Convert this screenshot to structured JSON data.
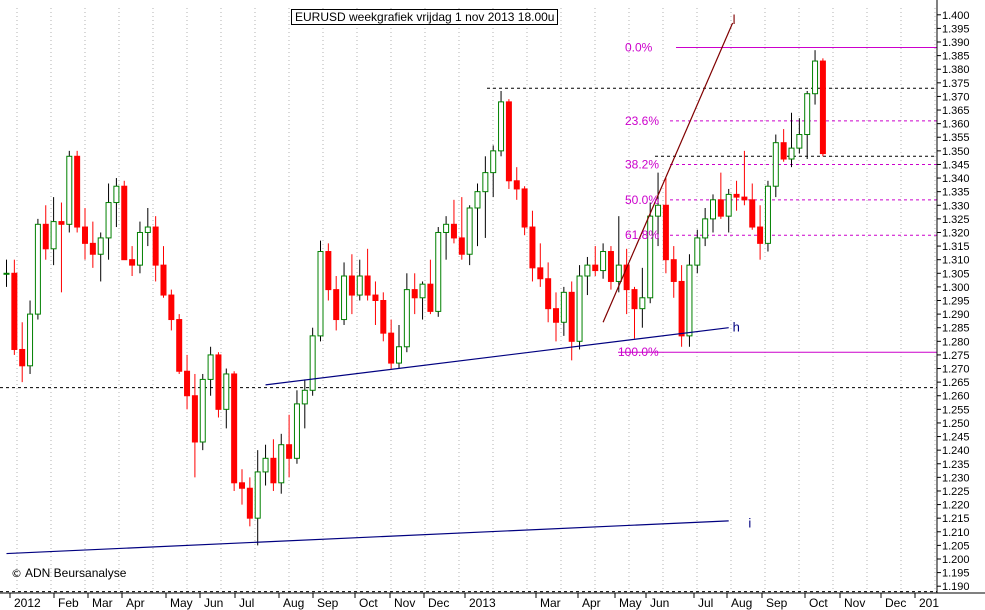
{
  "title": "EURUSD weekgrafiek vrijdag 1 nov 2013 18.00u",
  "copyright": "ADN Beursanalyse",
  "copyright_icon": "copyright-icon",
  "colors": {
    "up": "#008000",
    "down": "#ff0000",
    "fib": "#cc00cc",
    "trend": "#000080",
    "channel": "#800000",
    "grid": "#808080"
  },
  "chart_data": {
    "type": "candlestick",
    "timeframe": "weekly",
    "ylim": [
      1.1875,
      1.4025
    ],
    "y_ticks": [
      1.19,
      1.195,
      1.2,
      1.205,
      1.21,
      1.215,
      1.22,
      1.225,
      1.23,
      1.235,
      1.24,
      1.245,
      1.25,
      1.255,
      1.26,
      1.265,
      1.27,
      1.275,
      1.28,
      1.285,
      1.29,
      1.295,
      1.3,
      1.305,
      1.31,
      1.315,
      1.32,
      1.325,
      1.33,
      1.335,
      1.34,
      1.345,
      1.35,
      1.355,
      1.36,
      1.365,
      1.37,
      1.375,
      1.38,
      1.385,
      1.39,
      1.395,
      1.4
    ],
    "x_labels": [
      "2012",
      "Feb",
      "Mar",
      "Apr",
      "May",
      "Jun",
      "Jul",
      "Aug",
      "Sep",
      "Oct",
      "Nov",
      "Dec",
      "2013",
      "Mar",
      "Apr",
      "May",
      "Jun",
      "Jul",
      "Aug",
      "Sep",
      "Oct",
      "Nov",
      "Dec",
      "201"
    ],
    "fibonacci": [
      {
        "label": "0.0%",
        "value": 1.388
      },
      {
        "label": "23.6%",
        "value": 1.361
      },
      {
        "label": "38.2%",
        "value": 1.345
      },
      {
        "label": "50.0%",
        "value": 1.332
      },
      {
        "label": "61.8%",
        "value": 1.319
      },
      {
        "label": "100.0%",
        "value": 1.276
      }
    ],
    "horizontal_levels": [
      1.373,
      1.348,
      1.263,
      1.188
    ],
    "annotations": [
      {
        "label": "l",
        "week": 92.5,
        "value": 1.398
      },
      {
        "label": "h",
        "week": 92.5,
        "value": 1.285
      },
      {
        "label": "i",
        "week": 94.5,
        "value": 1.213
      }
    ],
    "trendlines": [
      {
        "name": "h",
        "from": [
          33,
          1.264
        ],
        "to": [
          92,
          1.285
        ]
      },
      {
        "name": "i",
        "from": [
          0,
          1.202
        ],
        "to": [
          92,
          1.214
        ]
      },
      {
        "name": "l",
        "from": [
          76,
          1.287
        ],
        "to": [
          92.5,
          1.397
        ]
      }
    ],
    "candles": [
      {
        "o": 1.305,
        "h": 1.31,
        "l": 1.3,
        "c": 1.305
      },
      {
        "o": 1.305,
        "h": 1.31,
        "l": 1.275,
        "c": 1.277
      },
      {
        "o": 1.277,
        "h": 1.287,
        "l": 1.265,
        "c": 1.271
      },
      {
        "o": 1.271,
        "h": 1.295,
        "l": 1.268,
        "c": 1.29
      },
      {
        "o": 1.29,
        "h": 1.325,
        "l": 1.288,
        "c": 1.323
      },
      {
        "o": 1.323,
        "h": 1.33,
        "l": 1.31,
        "c": 1.314
      },
      {
        "o": 1.314,
        "h": 1.333,
        "l": 1.308,
        "c": 1.324
      },
      {
        "o": 1.324,
        "h": 1.331,
        "l": 1.298,
        "c": 1.323
      },
      {
        "o": 1.323,
        "h": 1.35,
        "l": 1.32,
        "c": 1.348
      },
      {
        "o": 1.348,
        "h": 1.35,
        "l": 1.32,
        "c": 1.322
      },
      {
        "o": 1.322,
        "h": 1.329,
        "l": 1.31,
        "c": 1.316
      },
      {
        "o": 1.316,
        "h": 1.324,
        "l": 1.307,
        "c": 1.312
      },
      {
        "o": 1.312,
        "h": 1.32,
        "l": 1.302,
        "c": 1.318
      },
      {
        "o": 1.318,
        "h": 1.338,
        "l": 1.31,
        "c": 1.331
      },
      {
        "o": 1.331,
        "h": 1.34,
        "l": 1.322,
        "c": 1.337
      },
      {
        "o": 1.337,
        "h": 1.339,
        "l": 1.31,
        "c": 1.31
      },
      {
        "o": 1.31,
        "h": 1.315,
        "l": 1.304,
        "c": 1.308
      },
      {
        "o": 1.308,
        "h": 1.324,
        "l": 1.305,
        "c": 1.32
      },
      {
        "o": 1.32,
        "h": 1.329,
        "l": 1.315,
        "c": 1.322
      },
      {
        "o": 1.322,
        "h": 1.326,
        "l": 1.302,
        "c": 1.308
      },
      {
        "o": 1.308,
        "h": 1.315,
        "l": 1.296,
        "c": 1.297
      },
      {
        "o": 1.297,
        "h": 1.299,
        "l": 1.284,
        "c": 1.288
      },
      {
        "o": 1.288,
        "h": 1.29,
        "l": 1.268,
        "c": 1.269
      },
      {
        "o": 1.269,
        "h": 1.275,
        "l": 1.255,
        "c": 1.26
      },
      {
        "o": 1.26,
        "h": 1.268,
        "l": 1.23,
        "c": 1.243
      },
      {
        "o": 1.243,
        "h": 1.268,
        "l": 1.24,
        "c": 1.266
      },
      {
        "o": 1.266,
        "h": 1.278,
        "l": 1.26,
        "c": 1.275
      },
      {
        "o": 1.275,
        "h": 1.276,
        "l": 1.252,
        "c": 1.255
      },
      {
        "o": 1.255,
        "h": 1.27,
        "l": 1.248,
        "c": 1.268
      },
      {
        "o": 1.268,
        "h": 1.269,
        "l": 1.225,
        "c": 1.228
      },
      {
        "o": 1.228,
        "h": 1.233,
        "l": 1.22,
        "c": 1.226
      },
      {
        "o": 1.226,
        "h": 1.23,
        "l": 1.212,
        "c": 1.215
      },
      {
        "o": 1.215,
        "h": 1.24,
        "l": 1.205,
        "c": 1.232
      },
      {
        "o": 1.232,
        "h": 1.242,
        "l": 1.227,
        "c": 1.237
      },
      {
        "o": 1.237,
        "h": 1.244,
        "l": 1.225,
        "c": 1.228
      },
      {
        "o": 1.228,
        "h": 1.246,
        "l": 1.224,
        "c": 1.242
      },
      {
        "o": 1.242,
        "h": 1.253,
        "l": 1.23,
        "c": 1.237
      },
      {
        "o": 1.237,
        "h": 1.262,
        "l": 1.235,
        "c": 1.257
      },
      {
        "o": 1.257,
        "h": 1.266,
        "l": 1.248,
        "c": 1.262
      },
      {
        "o": 1.262,
        "h": 1.285,
        "l": 1.26,
        "c": 1.282
      },
      {
        "o": 1.282,
        "h": 1.317,
        "l": 1.28,
        "c": 1.313
      },
      {
        "o": 1.313,
        "h": 1.316,
        "l": 1.295,
        "c": 1.299
      },
      {
        "o": 1.299,
        "h": 1.304,
        "l": 1.284,
        "c": 1.288
      },
      {
        "o": 1.288,
        "h": 1.309,
        "l": 1.286,
        "c": 1.304
      },
      {
        "o": 1.304,
        "h": 1.312,
        "l": 1.29,
        "c": 1.297
      },
      {
        "o": 1.297,
        "h": 1.31,
        "l": 1.295,
        "c": 1.304
      },
      {
        "o": 1.304,
        "h": 1.314,
        "l": 1.295,
        "c": 1.297
      },
      {
        "o": 1.297,
        "h": 1.302,
        "l": 1.286,
        "c": 1.295
      },
      {
        "o": 1.295,
        "h": 1.298,
        "l": 1.28,
        "c": 1.283
      },
      {
        "o": 1.283,
        "h": 1.288,
        "l": 1.27,
        "c": 1.272
      },
      {
        "o": 1.272,
        "h": 1.286,
        "l": 1.27,
        "c": 1.278
      },
      {
        "o": 1.278,
        "h": 1.305,
        "l": 1.276,
        "c": 1.299
      },
      {
        "o": 1.299,
        "h": 1.305,
        "l": 1.29,
        "c": 1.296
      },
      {
        "o": 1.296,
        "h": 1.302,
        "l": 1.288,
        "c": 1.301
      },
      {
        "o": 1.301,
        "h": 1.31,
        "l": 1.29,
        "c": 1.291
      },
      {
        "o": 1.291,
        "h": 1.322,
        "l": 1.289,
        "c": 1.32
      },
      {
        "o": 1.32,
        "h": 1.326,
        "l": 1.31,
        "c": 1.323
      },
      {
        "o": 1.323,
        "h": 1.332,
        "l": 1.316,
        "c": 1.318
      },
      {
        "o": 1.318,
        "h": 1.333,
        "l": 1.31,
        "c": 1.312
      },
      {
        "o": 1.312,
        "h": 1.33,
        "l": 1.308,
        "c": 1.329
      },
      {
        "o": 1.329,
        "h": 1.338,
        "l": 1.315,
        "c": 1.335
      },
      {
        "o": 1.335,
        "h": 1.348,
        "l": 1.318,
        "c": 1.342
      },
      {
        "o": 1.342,
        "h": 1.352,
        "l": 1.333,
        "c": 1.35
      },
      {
        "o": 1.35,
        "h": 1.372,
        "l": 1.348,
        "c": 1.368
      },
      {
        "o": 1.368,
        "h": 1.369,
        "l": 1.336,
        "c": 1.339
      },
      {
        "o": 1.339,
        "h": 1.344,
        "l": 1.332,
        "c": 1.336
      },
      {
        "o": 1.336,
        "h": 1.337,
        "l": 1.319,
        "c": 1.322
      },
      {
        "o": 1.322,
        "h": 1.328,
        "l": 1.302,
        "c": 1.307
      },
      {
        "o": 1.307,
        "h": 1.316,
        "l": 1.3,
        "c": 1.303
      },
      {
        "o": 1.303,
        "h": 1.309,
        "l": 1.287,
        "c": 1.292
      },
      {
        "o": 1.292,
        "h": 1.298,
        "l": 1.28,
        "c": 1.287
      },
      {
        "o": 1.287,
        "h": 1.3,
        "l": 1.282,
        "c": 1.298
      },
      {
        "o": 1.298,
        "h": 1.302,
        "l": 1.273,
        "c": 1.28
      },
      {
        "o": 1.28,
        "h": 1.308,
        "l": 1.277,
        "c": 1.304
      },
      {
        "o": 1.304,
        "h": 1.311,
        "l": 1.297,
        "c": 1.308
      },
      {
        "o": 1.308,
        "h": 1.315,
        "l": 1.304,
        "c": 1.306
      },
      {
        "o": 1.306,
        "h": 1.316,
        "l": 1.303,
        "c": 1.313
      },
      {
        "o": 1.313,
        "h": 1.315,
        "l": 1.299,
        "c": 1.302
      },
      {
        "o": 1.302,
        "h": 1.326,
        "l": 1.298,
        "c": 1.308
      },
      {
        "o": 1.308,
        "h": 1.314,
        "l": 1.29,
        "c": 1.299
      },
      {
        "o": 1.299,
        "h": 1.3,
        "l": 1.281,
        "c": 1.292
      },
      {
        "o": 1.292,
        "h": 1.307,
        "l": 1.285,
        "c": 1.296
      },
      {
        "o": 1.296,
        "h": 1.331,
        "l": 1.294,
        "c": 1.326
      },
      {
        "o": 1.326,
        "h": 1.342,
        "l": 1.315,
        "c": 1.33
      },
      {
        "o": 1.33,
        "h": 1.34,
        "l": 1.305,
        "c": 1.31
      },
      {
        "o": 1.31,
        "h": 1.315,
        "l": 1.296,
        "c": 1.302
      },
      {
        "o": 1.302,
        "h": 1.308,
        "l": 1.278,
        "c": 1.282
      },
      {
        "o": 1.282,
        "h": 1.312,
        "l": 1.278,
        "c": 1.308
      },
      {
        "o": 1.308,
        "h": 1.321,
        "l": 1.305,
        "c": 1.318
      },
      {
        "o": 1.318,
        "h": 1.329,
        "l": 1.315,
        "c": 1.325
      },
      {
        "o": 1.325,
        "h": 1.334,
        "l": 1.32,
        "c": 1.332
      },
      {
        "o": 1.332,
        "h": 1.342,
        "l": 1.325,
        "c": 1.326
      },
      {
        "o": 1.326,
        "h": 1.336,
        "l": 1.32,
        "c": 1.334
      },
      {
        "o": 1.334,
        "h": 1.339,
        "l": 1.328,
        "c": 1.333
      },
      {
        "o": 1.333,
        "h": 1.35,
        "l": 1.33,
        "c": 1.332
      },
      {
        "o": 1.332,
        "h": 1.338,
        "l": 1.321,
        "c": 1.322
      },
      {
        "o": 1.322,
        "h": 1.33,
        "l": 1.31,
        "c": 1.316
      },
      {
        "o": 1.316,
        "h": 1.339,
        "l": 1.313,
        "c": 1.337
      },
      {
        "o": 1.337,
        "h": 1.356,
        "l": 1.333,
        "c": 1.353
      },
      {
        "o": 1.353,
        "h": 1.358,
        "l": 1.346,
        "c": 1.347
      },
      {
        "o": 1.347,
        "h": 1.364,
        "l": 1.344,
        "c": 1.351
      },
      {
        "o": 1.351,
        "h": 1.362,
        "l": 1.349,
        "c": 1.356
      },
      {
        "o": 1.356,
        "h": 1.372,
        "l": 1.347,
        "c": 1.371
      },
      {
        "o": 1.371,
        "h": 1.387,
        "l": 1.367,
        "c": 1.383
      },
      {
        "o": 1.383,
        "h": 1.384,
        "l": 1.348,
        "c": 1.349
      }
    ]
  }
}
